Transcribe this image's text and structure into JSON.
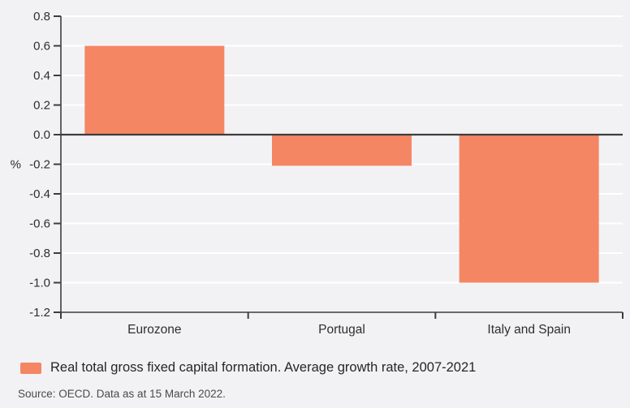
{
  "page": {
    "background_color": "#f2f2f4"
  },
  "chart_data": {
    "type": "bar",
    "categories": [
      "Eurozone",
      "Portugal",
      "Italy and Spain"
    ],
    "values": [
      0.6,
      -0.21,
      -1.0
    ],
    "title": "",
    "xlabel": "",
    "ylabel": "%",
    "ylim": [
      -1.2,
      0.8
    ],
    "yticks": [
      0.8,
      0.6,
      0.4,
      0.2,
      0.0,
      -0.2,
      -0.4,
      -0.6,
      -0.8,
      -1.0,
      -1.2
    ],
    "grid": "white horizontal gridlines on",
    "bar_color": "#f48664",
    "axis_color": "#3d3d3d",
    "gridline_color": "#ffffff",
    "legend_position": "bottom-left",
    "legend": {
      "label": "Real total gross fixed capital formation. Average growth rate, 2007-2021",
      "swatch_color": "#f48664"
    }
  },
  "source": {
    "text": "Source: OECD. Data as at 15 March 2022."
  }
}
